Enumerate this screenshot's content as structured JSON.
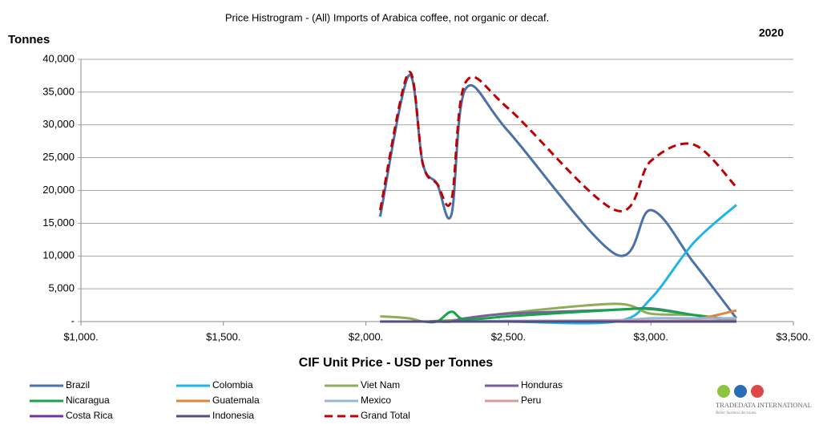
{
  "chart_data": {
    "type": "line",
    "title": "Price Histrogram - (All) Imports of Arabica coffee, not organic or decaf.",
    "y_label": "Tonnes",
    "x_label": "CIF Unit Price - USD per Tonnes",
    "annotation": "2020",
    "logo": {
      "name": "TRADEDATA INTERNATIONAL",
      "tagline": "Better business decisions."
    },
    "x": [
      2050,
      2150,
      2200,
      2250,
      2300,
      2350,
      2500,
      2875,
      3000,
      3150,
      3300
    ],
    "series": [
      {
        "name": "Brazil",
        "color": "#4a72a8",
        "values": [
          16000,
          37500,
          24000,
          21000,
          16300,
          35500,
          29000,
          10300,
          17000,
          9000,
          500
        ]
      },
      {
        "name": "Colombia",
        "color": "#1fb4e8",
        "values": [
          0,
          0,
          0,
          0,
          0,
          0,
          0,
          0,
          3500,
          12000,
          17800
        ]
      },
      {
        "name": "Viet Nam",
        "color": "#8fac5a",
        "values": [
          800,
          500,
          0,
          100,
          200,
          400,
          1300,
          2700,
          1200,
          1000,
          200
        ]
      },
      {
        "name": "Honduras",
        "color": "#7b5da0",
        "values": [
          0,
          0,
          0,
          0,
          0,
          500,
          1200,
          1800,
          2000,
          1000,
          0
        ]
      },
      {
        "name": "Nicaragua",
        "color": "#17a34a",
        "values": [
          0,
          0,
          0,
          0,
          1500,
          300,
          800,
          1800,
          1900,
          1000,
          100
        ]
      },
      {
        "name": "Guatemala",
        "color": "#e0843a",
        "values": [
          0,
          0,
          0,
          0,
          0,
          0,
          0,
          0,
          0,
          300,
          1700
        ]
      },
      {
        "name": "Mexico",
        "color": "#9bb5d6",
        "values": [
          0,
          0,
          0,
          0,
          0,
          0,
          100,
          200,
          500,
          500,
          500
        ]
      },
      {
        "name": "Peru",
        "color": "#d99a9a",
        "values": [
          0,
          0,
          0,
          0,
          0,
          0,
          0,
          100,
          100,
          100,
          100
        ]
      },
      {
        "name": "Costa Rica",
        "color": "#7030a0",
        "values": [
          0,
          0,
          0,
          0,
          0,
          0,
          0,
          0,
          0,
          0,
          0
        ]
      },
      {
        "name": "Indonesia",
        "color": "#5a4a7e",
        "values": [
          0,
          0,
          0,
          0,
          0,
          0,
          0,
          0,
          0,
          0,
          0
        ]
      },
      {
        "name": "Grand Total",
        "color": "#c00000",
        "dash": true,
        "values": [
          17000,
          38000,
          24000,
          21000,
          18500,
          36500,
          32500,
          17000,
          24500,
          27000,
          20500
        ]
      }
    ],
    "xlim": [
      1000,
      3500
    ],
    "xticks": [
      {
        "value": 1000,
        "label": "$1,000."
      },
      {
        "value": 1500,
        "label": "$1,500."
      },
      {
        "value": 2000,
        "label": "$2,000."
      },
      {
        "value": 2500,
        "label": "$2,500."
      },
      {
        "value": 3000,
        "label": "$3,000."
      },
      {
        "value": 3500,
        "label": "$3,500."
      }
    ],
    "ylim": [
      0,
      40000
    ],
    "yticks": [
      {
        "value": 0,
        "label": "-"
      },
      {
        "value": 5000,
        "label": "5,000"
      },
      {
        "value": 10000,
        "label": "10,000"
      },
      {
        "value": 15000,
        "label": "15,000"
      },
      {
        "value": 20000,
        "label": "20,000"
      },
      {
        "value": 25000,
        "label": "25,000"
      },
      {
        "value": 30000,
        "label": "30,000"
      },
      {
        "value": 35000,
        "label": "35,000"
      },
      {
        "value": 40000,
        "label": "40,000"
      }
    ],
    "grid": true,
    "legend": "bottom"
  }
}
